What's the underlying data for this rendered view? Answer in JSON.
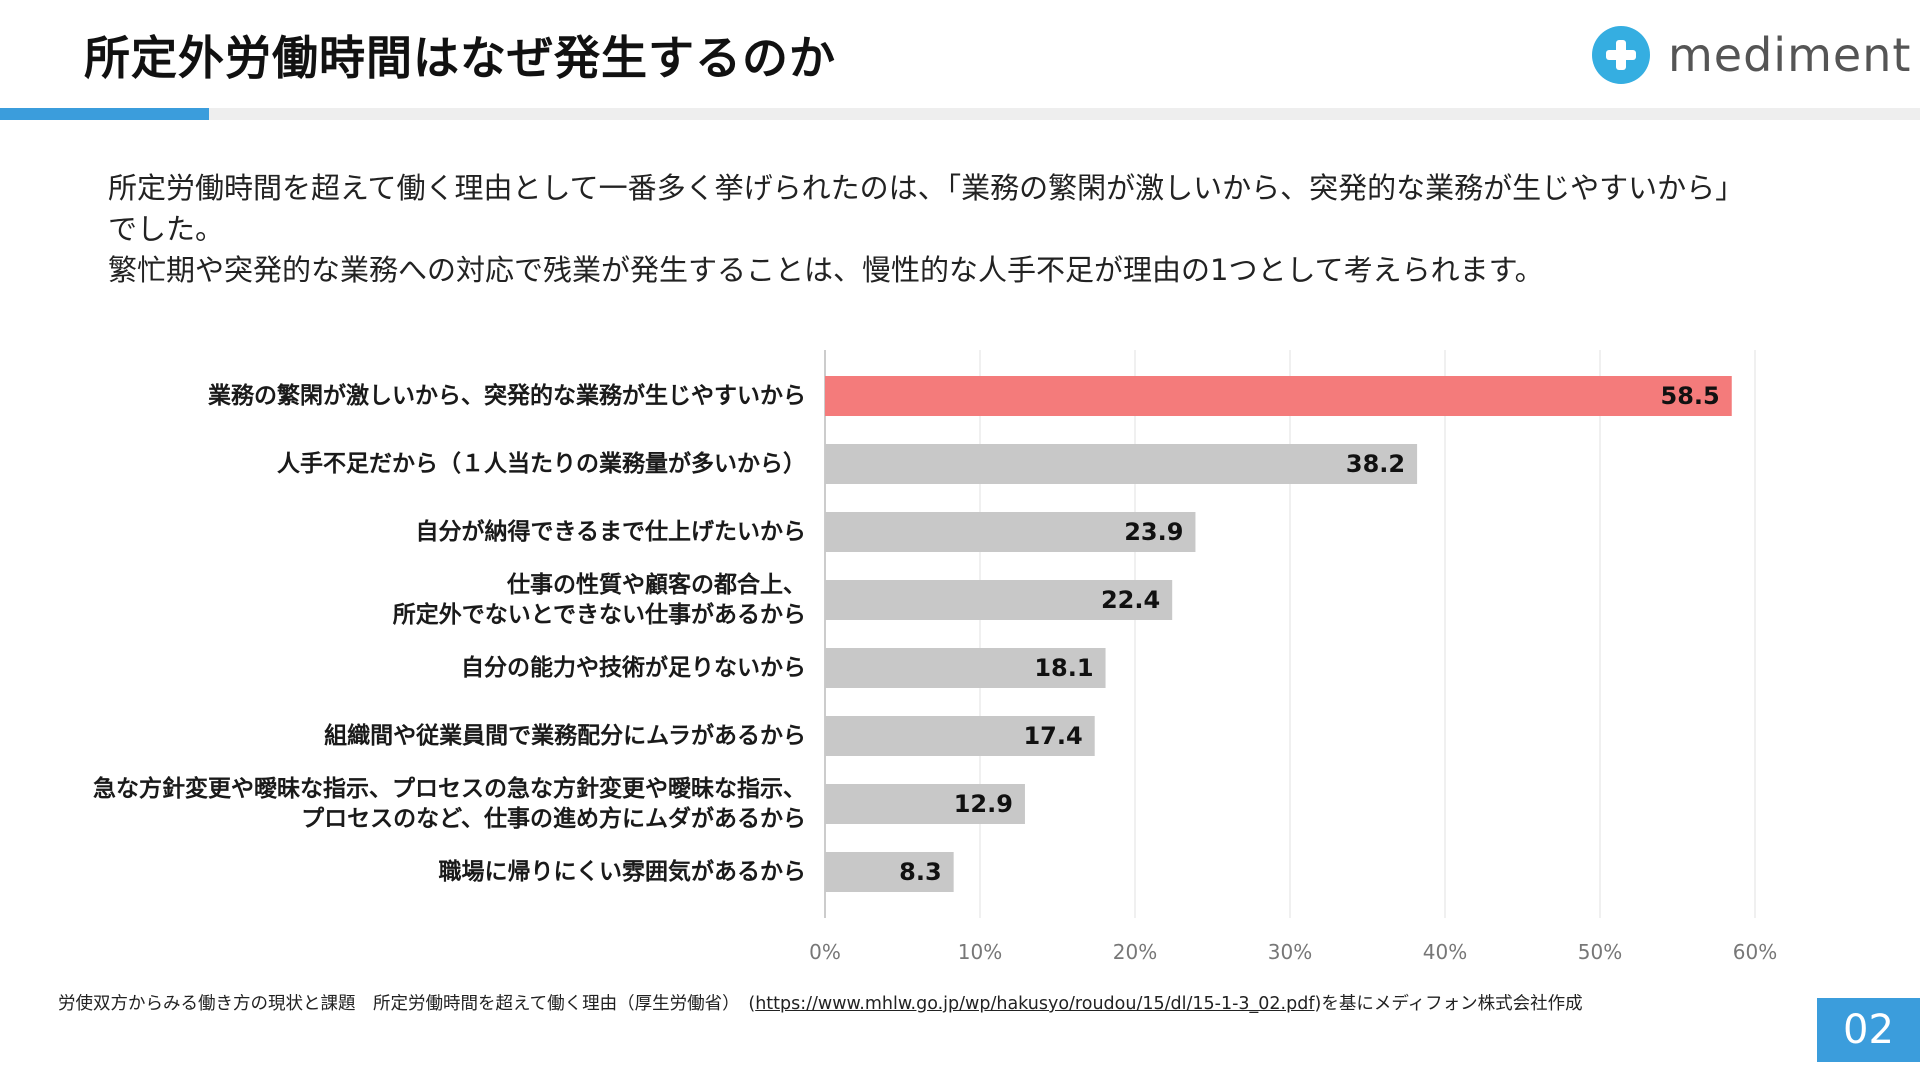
{
  "header": {
    "title": "所定外労働時間はなぜ発生するのか",
    "logo_text": "mediment",
    "accent_color": "#3b9ddc",
    "logo_color": "#35aee1"
  },
  "description": {
    "line1": "所定労働時間を超えて働く理由として一番多く挙げられたのは、「業務の繁閑が激しいから、突発的な業務が生じやすいから」でした。",
    "line2": "繁忙期や突発的な業務への対応で残業が発生することは、慢性的な人手不足が理由の1つとして考えられます。"
  },
  "chart_data": {
    "type": "bar",
    "orientation": "horizontal",
    "categories": [
      [
        "業務の繁閑が激しいから、突発的な業務が生じやすいから"
      ],
      [
        "人手不足だから（１人当たりの業務量が多いから）"
      ],
      [
        "自分が納得できるまで仕上げたいから"
      ],
      [
        "仕事の性質や顧客の都合上、",
        "所定外でないとできない仕事があるから"
      ],
      [
        "自分の能力や技術が足りないから"
      ],
      [
        "組織間や従業員間で業務配分にムラがあるから"
      ],
      [
        "急な方針変更や曖昧な指示、プロセスの急な方針変更や曖昧な指示、",
        "プロセスのなど、仕事の進め方にムダがあるから"
      ],
      [
        "職場に帰りにくい雰囲気があるから"
      ]
    ],
    "values": [
      58.5,
      38.2,
      23.9,
      22.4,
      18.1,
      17.4,
      12.9,
      8.3
    ],
    "value_labels": [
      "58.5",
      "38.2",
      "23.9",
      "22.4",
      "18.1",
      "17.4",
      "12.9",
      "8.3"
    ],
    "xlim": [
      0,
      60
    ],
    "xticks": [
      "0%",
      "10%",
      "20%",
      "30%",
      "40%",
      "50%",
      "60%"
    ],
    "grid": true,
    "highlight_index": 0,
    "highlight_color": "#f47b7b",
    "bar_color": "#c8c8c8",
    "xlabel": "",
    "ylabel": ""
  },
  "footer": {
    "source_prefix": "労使双方からみる働き方の現状と課題　所定労働時間を超えて働く理由（厚生労働省）　(",
    "source_link": "https://www.mhlw.go.jp/wp/hakusyo/roudou/15/dl/15-1-3_02.pdf",
    "source_suffix": ")を基にメディフォン株式会社作成",
    "page_number": "02"
  }
}
